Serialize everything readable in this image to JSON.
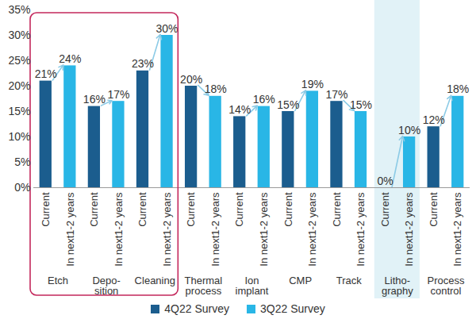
{
  "chart_data": {
    "type": "bar",
    "categories": [
      "Etch",
      "Depo-\nsition",
      "Cleaning",
      "Thermal\nprocess",
      "Ion\nimplant",
      "CMP",
      "Track",
      "Litho-\ngraphy",
      "Process\ncontrol"
    ],
    "subcategories": [
      "Current",
      "In next1-2 years"
    ],
    "series": [
      {
        "name": "4Q22 Survey",
        "color": "#1b5d8e",
        "values": [
          21,
          16,
          23,
          20,
          14,
          15,
          17,
          0,
          12
        ],
        "value_labels": [
          "21%",
          "16%",
          "23%",
          "20%",
          "14%",
          "15%",
          "17%",
          "0%",
          "12%"
        ]
      },
      {
        "name": "3Q22 Survey",
        "color": "#29b6e6",
        "values": [
          24,
          17,
          30,
          18,
          16,
          19,
          15,
          10,
          18
        ],
        "value_labels": [
          "24%",
          "17%",
          "30%",
          "18%",
          "16%",
          "19%",
          "15%",
          "10%",
          "18%"
        ]
      }
    ],
    "ylim": [
      0,
      35
    ],
    "yticks": [
      {
        "value": 0,
        "label": "0%"
      },
      {
        "value": 5,
        "label": "5%"
      },
      {
        "value": 10,
        "label": "10%"
      },
      {
        "value": 15,
        "label": "15%"
      },
      {
        "value": 20,
        "label": "20%"
      },
      {
        "value": 25,
        "label": "25%"
      },
      {
        "value": 30,
        "label": "30%"
      },
      {
        "value": 35,
        "label": "35%"
      }
    ],
    "grid": false,
    "data_labels": true,
    "legend": "bottom"
  }
}
